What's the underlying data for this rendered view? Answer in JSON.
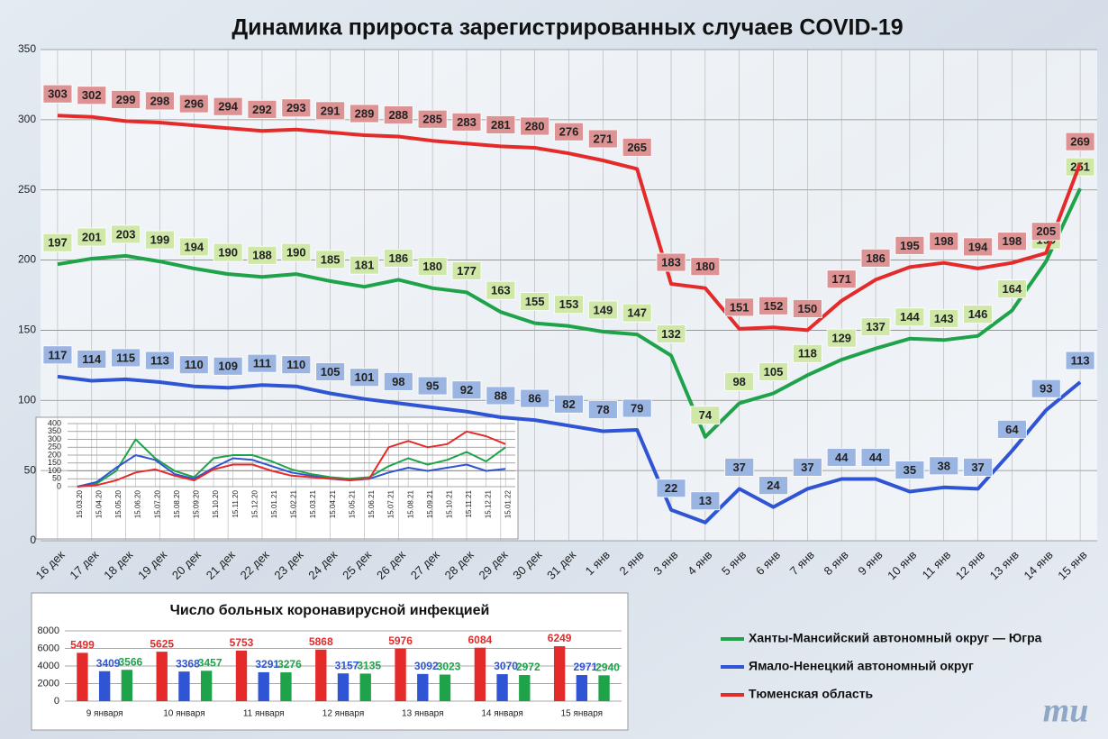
{
  "chart_data": [
    {
      "type": "line",
      "title": "Динамика прироста зарегистрированных случаев COVID-19",
      "categories": [
        "16 дек",
        "17 дек",
        "18 дек",
        "19 дек",
        "20 дек",
        "21 дек",
        "22 дек",
        "23 дек",
        "24 дек",
        "25 дек",
        "26 дек",
        "27 дек",
        "28 дек",
        "29 дек",
        "30 дек",
        "31 дек",
        "1 янв",
        "2 янв",
        "3 янв",
        "4 янв",
        "5 янв",
        "6 янв",
        "7 янв",
        "8 янв",
        "9 янв",
        "10 янв",
        "11 янв",
        "12 янв",
        "13 янв",
        "14 янв",
        "15 янв"
      ],
      "series": [
        {
          "name": "Ханты-Мансийский автономный округ — Югра",
          "color": "#1fa34a",
          "label_fill": "#cfe8a8",
          "values": [
            197,
            201,
            203,
            199,
            194,
            190,
            188,
            190,
            185,
            181,
            186,
            180,
            177,
            163,
            155,
            153,
            149,
            147,
            132,
            74,
            98,
            105,
            118,
            129,
            137,
            144,
            143,
            146,
            164,
            199,
            251
          ]
        },
        {
          "name": "Ямало-Ненецкий автономный округ",
          "color": "#2f55d4",
          "label_fill": "#9bb5e3",
          "values": [
            117,
            114,
            115,
            113,
            110,
            109,
            111,
            110,
            105,
            101,
            98,
            95,
            92,
            88,
            86,
            82,
            78,
            79,
            22,
            13,
            37,
            24,
            37,
            44,
            44,
            35,
            38,
            37,
            64,
            93,
            113
          ]
        },
        {
          "name": "Тюменская область",
          "color": "#e52a2a",
          "label_fill": "#dd9393",
          "values": [
            303,
            302,
            299,
            298,
            296,
            294,
            292,
            293,
            291,
            289,
            288,
            285,
            283,
            281,
            280,
            276,
            271,
            265,
            183,
            180,
            151,
            152,
            150,
            171,
            186,
            195,
            198,
            194,
            198,
            205,
            269
          ]
        }
      ],
      "ylim": [
        0,
        350
      ],
      "yticks": [
        0,
        50,
        100,
        150,
        200,
        250,
        300,
        350
      ],
      "grid": true
    },
    {
      "type": "line",
      "categories": [
        "15.03.20",
        "15.04.20",
        "15.05.20",
        "15.06.20",
        "15.07.20",
        "15.08.20",
        "15.09.20",
        "15.10.20",
        "15.11.20",
        "15.12.20",
        "15.01.21",
        "15.02.21",
        "15.03.21",
        "15.04.21",
        "15.05.21",
        "15.06.21",
        "15.07.21",
        "15.08.21",
        "15.09.21",
        "15.10.21",
        "15.11.21",
        "15.12.21",
        "15.01.22"
      ],
      "series": [
        {
          "color": "#1fa34a",
          "values": [
            0,
            20,
            100,
            300,
            180,
            100,
            60,
            180,
            200,
            200,
            160,
            110,
            80,
            60,
            50,
            60,
            130,
            180,
            140,
            170,
            220,
            160,
            250
          ]
        },
        {
          "color": "#2f55d4",
          "values": [
            0,
            30,
            120,
            200,
            170,
            80,
            50,
            120,
            180,
            170,
            130,
            90,
            70,
            50,
            40,
            50,
            90,
            120,
            100,
            120,
            140,
            100,
            113
          ]
        },
        {
          "color": "#e52a2a",
          "values": [
            0,
            10,
            40,
            90,
            110,
            70,
            40,
            110,
            140,
            140,
            100,
            70,
            60,
            50,
            45,
            50,
            250,
            290,
            250,
            270,
            350,
            320,
            270
          ]
        }
      ],
      "ylim": [
        0,
        400
      ],
      "yticks": [
        0,
        50,
        100,
        150,
        200,
        250,
        300,
        350,
        400
      ],
      "grid": true
    },
    {
      "type": "bar",
      "title": "Число больных коронавирусной  инфекцией",
      "categories": [
        "9 января",
        "10 января",
        "11 января",
        "12 января",
        "13 января",
        "14 января",
        "15 января"
      ],
      "series": [
        {
          "color": "#e52a2a",
          "values": [
            5499,
            5625,
            5753,
            5868,
            5976,
            6084,
            6249
          ]
        },
        {
          "color": "#2f55d4",
          "values": [
            3409,
            3368,
            3291,
            3157,
            3092,
            3070,
            2971
          ]
        },
        {
          "color": "#1fa34a",
          "values": [
            3566,
            3457,
            3276,
            3135,
            3023,
            2972,
            2940
          ]
        }
      ],
      "ylim": [
        0,
        8000
      ],
      "yticks": [
        0,
        2000,
        4000,
        6000,
        8000
      ],
      "grid": true
    }
  ],
  "logo": "mu"
}
